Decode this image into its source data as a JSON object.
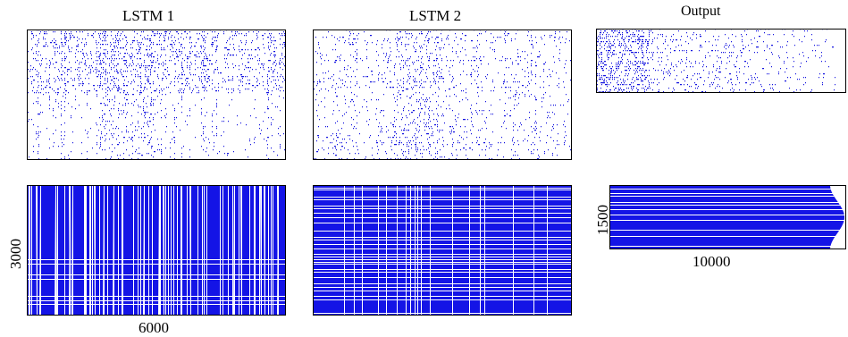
{
  "chart_data": [
    {
      "type": "heatmap",
      "title": "LSTM 1",
      "row": "top",
      "xlabel": "",
      "ylabel": "",
      "colors": {
        "mark": "#1515e0",
        "background": "#ffffff"
      },
      "note_density": "sparse"
    },
    {
      "type": "heatmap",
      "title": "LSTM 2",
      "row": "top",
      "xlabel": "",
      "ylabel": "",
      "colors": {
        "mark": "#1515e0",
        "background": "#ffffff"
      },
      "note_density": "sparse"
    },
    {
      "type": "heatmap",
      "title": "Output",
      "row": "top",
      "xlabel": "",
      "ylabel": "",
      "colors": {
        "mark": "#1515e0",
        "background": "#ffffff"
      },
      "note_density": "sparse"
    },
    {
      "type": "heatmap",
      "title": "",
      "row": "bottom",
      "xlabel": "6000",
      "ylabel": "3000",
      "colors": {
        "mark": "#1414e6",
        "background": "#ffffff"
      },
      "note_density": "dense"
    },
    {
      "type": "heatmap",
      "title": "",
      "row": "bottom",
      "xlabel": "",
      "ylabel": "",
      "colors": {
        "mark": "#1414e6",
        "background": "#ffffff"
      },
      "note_density": "dense"
    },
    {
      "type": "heatmap",
      "title": "",
      "row": "bottom",
      "xlabel": "10000",
      "ylabel": "1500",
      "colors": {
        "mark": "#1414e6",
        "background": "#ffffff"
      },
      "note_density": "dense"
    }
  ]
}
